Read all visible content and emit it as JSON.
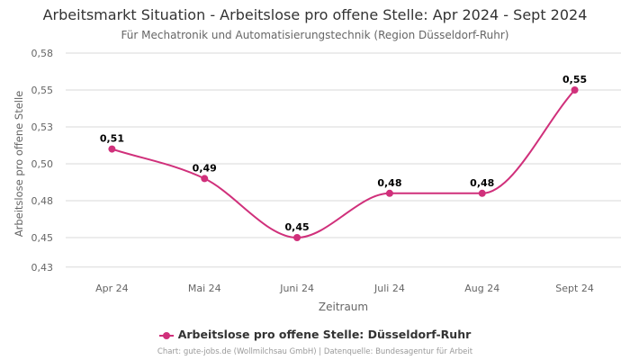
{
  "chart_data": {
    "type": "line",
    "title": "Arbeitsmarkt Situation - Arbeitslose pro offene Stelle: Apr 2024 - Sept 2024",
    "subtitle": "Für Mechatronik und Automatisierungstechnik (Region Düsseldorf-Ruhr)",
    "xlabel": "Zeitraum",
    "ylabel": "Arbeitslose pro offene Stelle",
    "categories": [
      "Apr 24",
      "Mai 24",
      "Juni 24",
      "Juli 24",
      "Aug 24",
      "Sept 24"
    ],
    "series": [
      {
        "name": "Arbeitslose pro offene Stelle: Düsseldorf-Ruhr",
        "values": [
          0.51,
          0.49,
          0.45,
          0.48,
          0.48,
          0.55
        ],
        "labels": [
          "0,51",
          "0,49",
          "0,45",
          "0,48",
          "0,48",
          "0,55"
        ],
        "color": "#d0307b"
      }
    ],
    "yticks": [
      {
        "value": 0.43,
        "label": "0,43"
      },
      {
        "value": 0.45,
        "label": "0,45"
      },
      {
        "value": 0.475,
        "label": "0,48"
      },
      {
        "value": 0.5,
        "label": "0,50"
      },
      {
        "value": 0.525,
        "label": "0,53"
      },
      {
        "value": 0.55,
        "label": "0,55"
      },
      {
        "value": 0.575,
        "label": "0,58"
      }
    ],
    "ylim": [
      0.425,
      0.575
    ],
    "grid": true,
    "legend_position": "bottom",
    "credits": "Chart: gute-jobs.de (Wollmilchsau GmbH) | Datenquelle: Bundesagentur für Arbeit"
  }
}
